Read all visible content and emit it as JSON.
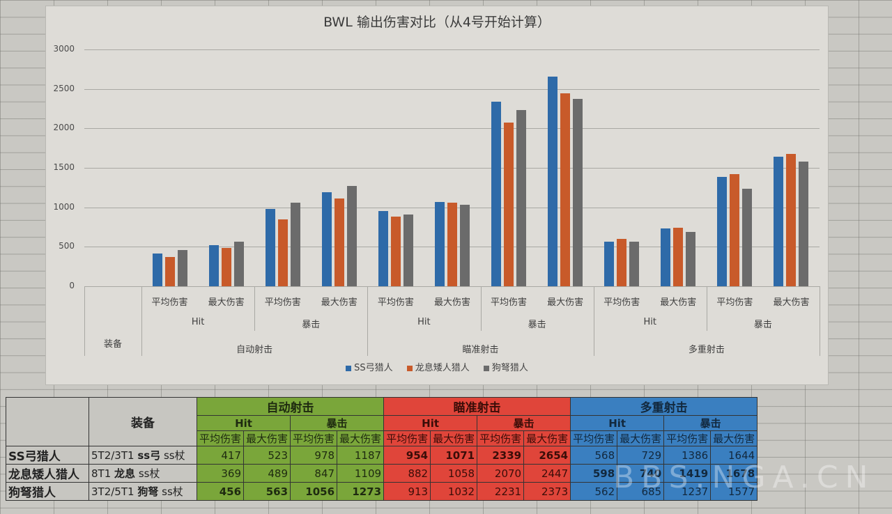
{
  "chart_data": {
    "type": "bar",
    "title": "BWL 输出伤害对比（从4号开始计算）",
    "xlabel": "",
    "ylabel": "",
    "ylim": [
      0,
      3000
    ],
    "yticks": [
      0,
      500,
      1000,
      1500,
      2000,
      2500,
      3000
    ],
    "grid": true,
    "legend_position": "bottom",
    "category_levels": {
      "level1": [
        "平均伤害",
        "最大伤害",
        "平均伤害",
        "最大伤害",
        "平均伤害",
        "最大伤害",
        "平均伤害",
        "最大伤害",
        "平均伤害",
        "最大伤害",
        "平均伤害",
        "最大伤害"
      ],
      "level2": [
        "Hit",
        "暴击",
        "Hit",
        "暴击",
        "Hit",
        "暴击"
      ],
      "level3": [
        "自动射击",
        "瞄准射击",
        "多重射击"
      ],
      "row_header": "装备"
    },
    "categories": [
      "自动射击-Hit-平均伤害",
      "自动射击-Hit-最大伤害",
      "自动射击-暴击-平均伤害",
      "自动射击-暴击-最大伤害",
      "瞄准射击-Hit-平均伤害",
      "瞄准射击-Hit-最大伤害",
      "瞄准射击-暴击-平均伤害",
      "瞄准射击-暴击-最大伤害",
      "多重射击-Hit-平均伤害",
      "多重射击-Hit-最大伤害",
      "多重射击-暴击-平均伤害",
      "多重射击-暴击-最大伤害"
    ],
    "series": [
      {
        "name": "SS弓猎人",
        "color": "#2e6aa8",
        "values": [
          417,
          523,
          978,
          1187,
          954,
          1071,
          2339,
          2654,
          568,
          729,
          1386,
          1644
        ]
      },
      {
        "name": "龙息矮人猎人",
        "color": "#c85a2a",
        "values": [
          369,
          489,
          847,
          1109,
          882,
          1058,
          2070,
          2447,
          598,
          740,
          1419,
          1678
        ]
      },
      {
        "name": "狗弩猎人",
        "color": "#6b6b6b",
        "values": [
          456,
          563,
          1056,
          1273,
          913,
          1032,
          2231,
          2373,
          562,
          685,
          1237,
          1577
        ]
      }
    ]
  },
  "chart": {
    "title": "BWL 输出伤害对比（从4号开始计算）",
    "yticks": [
      "3000",
      "2500",
      "2000",
      "1500",
      "1000",
      "500",
      "0"
    ],
    "row_header": "装备",
    "legend": [
      "SS弓猎人",
      "龙息矮人猎人",
      "狗弩猎人"
    ]
  },
  "table": {
    "header_equip": "装备",
    "groups": [
      {
        "name": "自动射击",
        "color": "#7aa63a"
      },
      {
        "name": "瞄准射击",
        "color": "#e0453a"
      },
      {
        "name": "多重射击",
        "color": "#3a7fc0"
      }
    ],
    "sub": [
      "Hit",
      "暴击"
    ],
    "cols": [
      "平均伤害",
      "最大伤害"
    ],
    "rows": [
      {
        "name": "SS弓猎人",
        "equip_set": "5T2/3T1",
        "equip_weapon": "ss弓",
        "equip_staff": "ss杖",
        "values": [
          "417",
          "523",
          "978",
          "1187",
          "954",
          "1071",
          "2339",
          "2654",
          "568",
          "729",
          "1386",
          "1644"
        ]
      },
      {
        "name": "龙息矮人猎人",
        "equip_set": "8T1",
        "equip_weapon": "龙息",
        "equip_staff": "ss杖",
        "values": [
          "369",
          "489",
          "847",
          "1109",
          "882",
          "1058",
          "2070",
          "2447",
          "598",
          "740",
          "1419",
          "1678"
        ]
      },
      {
        "name": "狗弩猎人",
        "equip_set": "3T2/5T1",
        "equip_weapon": "狗弩",
        "equip_staff": "ss杖",
        "values": [
          "456",
          "563",
          "1056",
          "1273",
          "913",
          "1032",
          "2231",
          "2373",
          "562",
          "685",
          "1237",
          "1577"
        ]
      }
    ]
  },
  "watermark": "BBS.NGA.CN"
}
